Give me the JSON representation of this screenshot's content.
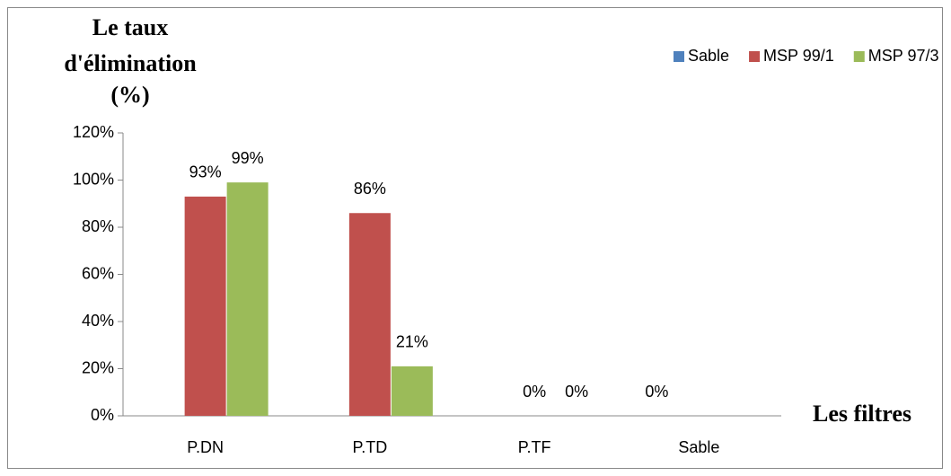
{
  "chart_data": {
    "type": "bar",
    "y_label": [
      "Le taux",
      "d'élimination",
      "(%)"
    ],
    "x_label": "Les filtres",
    "categories": [
      "P.DN",
      "P.TD",
      "P.TF",
      "Sable"
    ],
    "series": [
      {
        "name": "Sable",
        "color": "#4f81bd",
        "values": [
          null,
          null,
          null,
          0
        ],
        "value_labels": [
          null,
          null,
          null,
          "0%"
        ]
      },
      {
        "name": "MSP 99/1",
        "color": "#c0504d",
        "values": [
          93,
          86,
          0,
          null
        ],
        "value_labels": [
          "93%",
          "86%",
          "0%",
          null
        ]
      },
      {
        "name": "MSP 97/3",
        "color": "#9bbb59",
        "values": [
          99,
          21,
          0,
          null
        ],
        "value_labels": [
          "99%",
          "21%",
          "0%",
          null
        ]
      }
    ],
    "ylim": [
      0,
      120
    ],
    "yticks": [
      {
        "value": 0,
        "label": "0%"
      },
      {
        "value": 20,
        "label": "20%"
      },
      {
        "value": 40,
        "label": "40%"
      },
      {
        "value": 60,
        "label": "60%"
      },
      {
        "value": 80,
        "label": "80%"
      },
      {
        "value": 100,
        "label": "100%"
      },
      {
        "value": 120,
        "label": "120%"
      }
    ],
    "legend": "top-right"
  }
}
